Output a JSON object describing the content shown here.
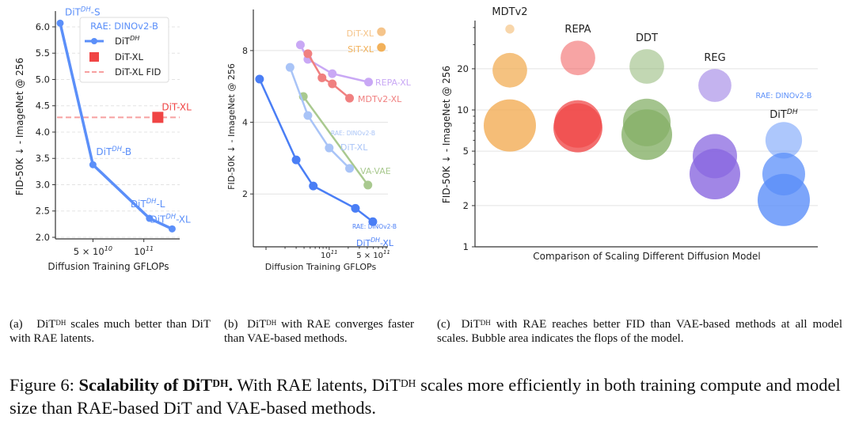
{
  "charts_shared": {
    "grid_color": "#e3e3e3",
    "axis_color": "#333333",
    "label_color": "#222222"
  },
  "chart_data": [
    {
      "panel": "a",
      "type": "line",
      "xlabel": "Diffusion Training GFLOPs",
      "ylabel": "FID-50K ↓ - ImageNet @ 256",
      "xscale": "log",
      "xlim": [
        30000000000,
        163000000000
      ],
      "ylim": [
        1.97,
        6.3
      ],
      "xticks": [
        {
          "value": 50000000000,
          "base": "5 × 10",
          "exp": "10"
        },
        {
          "value": 100000000000,
          "base": "10",
          "exp": "11"
        }
      ],
      "yticks": [
        "2.0",
        "2.5",
        "3.0",
        "3.5",
        "4.0",
        "4.5",
        "5.0",
        "5.5",
        "6.0"
      ],
      "grid": "horizontal dashed",
      "legend": {
        "placement": "top-right",
        "title": "RAE: DINOv2-B",
        "entries": [
          {
            "name": "DiT",
            "sup": "DH",
            "marker": "line-circle"
          },
          {
            "name": "DiT-XL",
            "sup": "",
            "marker": "square"
          },
          {
            "name": "DiT-XL FID",
            "sup": "",
            "marker": "dashed-line"
          }
        ]
      },
      "series": [
        {
          "name": "DiT^DH",
          "color": "#5b8ff9",
          "points": [
            {
              "x": 32000000000,
              "y": 6.07,
              "label": "DiT",
              "sup": "DH",
              "suffix": "-S"
            },
            {
              "x": 50000000000,
              "y": 3.38,
              "label": "DiT",
              "sup": "DH",
              "suffix": "-B"
            },
            {
              "x": 108000000000,
              "y": 2.36,
              "label": "DiT",
              "sup": "DH",
              "suffix": "-L"
            },
            {
              "x": 147000000000,
              "y": 2.16,
              "label": "DiT",
              "sup": "DH",
              "suffix": "-XL"
            }
          ]
        },
        {
          "name": "DiT-XL",
          "color": "#f04545",
          "points": [
            {
              "x": 121000000000,
              "y": 4.28,
              "label": "DiT-XL",
              "sup": "",
              "suffix": ""
            }
          ]
        }
      ],
      "reference_line": {
        "name": "DiT-XL FID",
        "y": 4.28,
        "color": "#f7a0a0"
      }
    },
    {
      "panel": "b",
      "type": "line",
      "xlabel": "Diffusion Training GFLOPs",
      "ylabel": "FID-50K ↓ - ImageNet @ 256",
      "xscale": "log",
      "yscale": "log2",
      "xlim": [
        6300000000,
        850000000000
      ],
      "ylim": [
        1.2,
        11.9
      ],
      "xticks": [
        {
          "value": 100000000000,
          "base": "10",
          "exp": "11"
        },
        {
          "value": 500000000000,
          "base": "5 × 10",
          "exp": "11"
        }
      ],
      "yticks": [
        "2",
        "4",
        "8"
      ],
      "grid": "horizontal",
      "series": [
        {
          "name": "DiT-XL",
          "color": "#f5c48a",
          "label_pos": "left",
          "points": [
            {
              "x": 670000000000,
              "y": 9.6
            }
          ]
        },
        {
          "name": "SiT-XL",
          "color": "#f2b15a",
          "label_pos": "left",
          "points": [
            {
              "x": 670000000000,
              "y": 8.25
            }
          ]
        },
        {
          "name": "REPA-XL",
          "color": "#c9a8f5",
          "points": [
            {
              "x": 35000000000,
              "y": 8.45
            },
            {
              "x": 46000000000,
              "y": 7.35
            },
            {
              "x": 112000000000,
              "y": 6.4
            },
            {
              "x": 420000000000,
              "y": 5.9
            }
          ]
        },
        {
          "name": "MDTv2-XL",
          "color": "#f08080",
          "points": [
            {
              "x": 46000000000,
              "y": 7.76
            },
            {
              "x": 77000000000,
              "y": 6.15
            },
            {
              "x": 112000000000,
              "y": 5.8
            },
            {
              "x": 210000000000,
              "y": 5.05
            }
          ]
        },
        {
          "name": "VA-VAE",
          "color": "#a9c98f",
          "points": [
            {
              "x": 39000000000,
              "y": 5.13
            },
            {
              "x": 410000000000,
              "y": 2.18
            }
          ]
        },
        {
          "name": "DiT-XL",
          "note": "RAE: DINOv2-B",
          "color": "#a9c4f7",
          "points": [
            {
              "x": 24000000000,
              "y": 6.8
            },
            {
              "x": 46000000000,
              "y": 4.27
            },
            {
              "x": 100000000000,
              "y": 3.12
            },
            {
              "x": 210000000000,
              "y": 2.56
            }
          ]
        },
        {
          "name": "DiT",
          "sup": "DH",
          "suffix": "-XL",
          "note": "RAE: DINOv2-B",
          "color": "#4a7ef5",
          "points": [
            {
              "x": 7900000000,
              "y": 6.07
            },
            {
              "x": 30000000000,
              "y": 2.78
            },
            {
              "x": 56000000000,
              "y": 2.16
            },
            {
              "x": 260000000000,
              "y": 1.74
            },
            {
              "x": 490000000000,
              "y": 1.53
            }
          ]
        }
      ]
    },
    {
      "panel": "c",
      "type": "scatter",
      "subtype": "bubble",
      "xlabel": "Comparison of Scaling Different Diffusion Model",
      "ylabel": "FID-50K ↓ - ImageNet @ 256",
      "yscale": "log",
      "ylim": [
        1,
        45
      ],
      "yticks": [
        "1",
        "2",
        "5",
        "10",
        "20"
      ],
      "grid": "horizontal",
      "size_meaning": "relative bubble area (flops)",
      "groups": [
        {
          "name": "MDTv2",
          "color": "#f2ad55",
          "bubbles": [
            {
              "y": 39,
              "size": 0.03
            },
            {
              "y": 19.5,
              "size": 0.44
            },
            {
              "y": 7.7,
              "size": 1.0
            }
          ]
        },
        {
          "name": "REPA",
          "color": "#f04a4a",
          "bubbles": [
            {
              "y": 24,
              "size": 0.44
            },
            {
              "y": 7.9,
              "size": 0.83
            },
            {
              "y": 7.4,
              "size": 0.88
            }
          ]
        },
        {
          "name": "DDT",
          "color": "#86b068",
          "bubbles": [
            {
              "y": 20.8,
              "size": 0.44
            },
            {
              "y": 8.1,
              "size": 0.83
            },
            {
              "y": 6.6,
              "size": 0.94
            }
          ]
        },
        {
          "name": "REG",
          "color": "#8a68e0",
          "bubbles": [
            {
              "y": 15.1,
              "size": 0.4
            },
            {
              "y": 4.6,
              "size": 0.72
            },
            {
              "y": 3.4,
              "size": 0.94
            }
          ]
        },
        {
          "name": "DiT",
          "sup": "DH",
          "note": "RAE: DINOv2-B",
          "color": "#5b8ff9",
          "bubbles": [
            {
              "y": 6.0,
              "size": 0.49
            },
            {
              "y": 3.4,
              "size": 0.67
            },
            {
              "y": 2.2,
              "size": 1.0
            }
          ]
        }
      ]
    }
  ],
  "captions": {
    "a": {
      "label": "(a)",
      "pre": "DiT",
      "sup": "DH",
      "post": " scales much better than DiT with RAE latents."
    },
    "b": {
      "label": "(b)",
      "pre": "DiT",
      "sup": "DH",
      "post": " with RAE converges faster than VAE-based methods."
    },
    "c": {
      "label": "(c)",
      "pre": "DiT",
      "sup": "DH",
      "post": " with RAE reaches better FID than VAE-based methods at all model scales. Bubble area indicates the flops of the model."
    },
    "figure": {
      "number": "Figure 6:",
      "bold": "Scalability of DiT",
      "bold_sup": "DH",
      "bold_end": ".",
      "pre": " With RAE latents, DiT",
      "sup": "DH",
      "post": " scales more efficiently in both training compute and model size than RAE-based DiT and VAE-based methods."
    }
  }
}
